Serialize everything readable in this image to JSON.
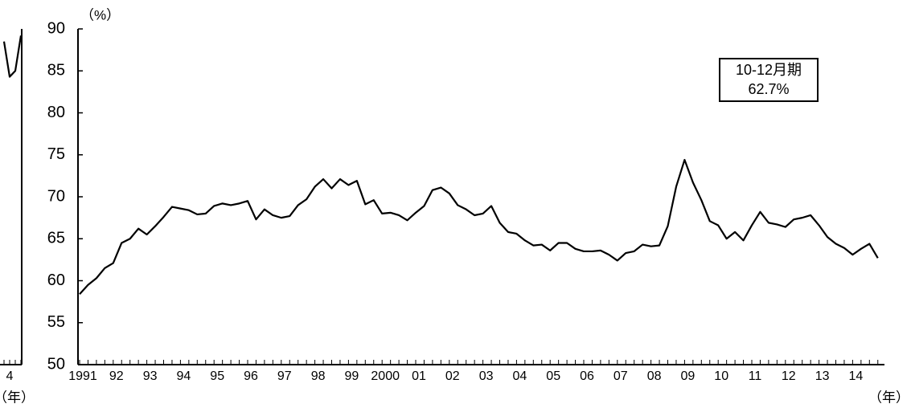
{
  "chart_data": [
    {
      "type": "line",
      "y_unit_label": "（%）",
      "x_unit_label": "（年）",
      "annotation": [
        "10-12月期",
        "62.7%"
      ],
      "color": "#000000",
      "ylim": [
        50,
        90
      ],
      "yticks": [
        50,
        55,
        60,
        65,
        70,
        75,
        80,
        85,
        90
      ],
      "categories": [
        "1991",
        null,
        null,
        null,
        "92",
        null,
        null,
        null,
        "93",
        null,
        null,
        null,
        "94",
        null,
        null,
        null,
        "95",
        null,
        null,
        null,
        "96",
        null,
        null,
        null,
        "97",
        null,
        null,
        null,
        "98",
        null,
        null,
        null,
        "99",
        null,
        null,
        null,
        "2000",
        null,
        null,
        null,
        "01",
        null,
        null,
        null,
        "02",
        null,
        null,
        null,
        "03",
        null,
        null,
        null,
        "04",
        null,
        null,
        null,
        "05",
        null,
        null,
        null,
        "06",
        null,
        null,
        null,
        "07",
        null,
        null,
        null,
        "08",
        null,
        null,
        null,
        "09",
        null,
        null,
        null,
        "10",
        null,
        null,
        null,
        "11",
        null,
        null,
        null,
        "12",
        null,
        null,
        null,
        "13",
        null,
        null,
        null,
        "14",
        null,
        null,
        null
      ],
      "values": [
        58.4,
        59.5,
        60.3,
        61.5,
        62.1,
        64.5,
        65.0,
        66.2,
        65.5,
        66.5,
        67.6,
        68.8,
        68.6,
        68.4,
        67.9,
        68.0,
        68.9,
        69.2,
        69.0,
        69.2,
        69.5,
        67.3,
        68.5,
        67.8,
        67.5,
        67.7,
        69.0,
        69.7,
        71.2,
        72.1,
        71.0,
        72.1,
        71.4,
        71.9,
        69.1,
        69.6,
        68.0,
        68.1,
        67.8,
        67.2,
        68.1,
        68.9,
        70.8,
        71.1,
        70.4,
        69.0,
        68.5,
        67.8,
        68.0,
        68.9,
        66.9,
        65.8,
        65.6,
        64.8,
        64.2,
        64.3,
        63.6,
        64.5,
        64.5,
        63.8,
        63.5,
        63.5,
        63.6,
        63.1,
        62.4,
        63.3,
        63.5,
        64.3,
        64.1,
        64.2,
        66.5,
        71.2,
        74.4,
        71.7,
        69.6,
        67.1,
        66.6,
        65.0,
        65.8,
        64.8,
        66.6,
        68.2,
        66.9,
        66.7,
        66.4,
        67.3,
        67.5,
        67.8,
        66.6,
        65.2,
        64.4,
        63.9,
        63.1,
        63.8,
        64.4,
        62.7
      ]
    },
    {
      "type": "line",
      "x_unit_label": "（年）",
      "color": "#000000",
      "ylim": [
        50,
        90
      ],
      "categories": [
        null,
        "4",
        null,
        null
      ],
      "values": [
        88.5,
        84.3,
        85.0,
        89.2
      ]
    }
  ]
}
